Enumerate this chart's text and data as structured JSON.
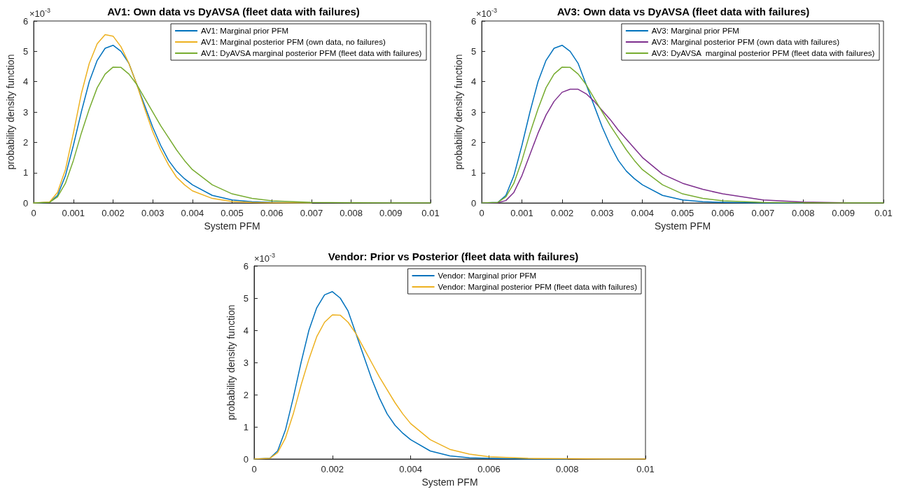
{
  "chart_data": [
    {
      "type": "line",
      "title": "AV1: Own data vs DyAVSA (fleet data with failures)",
      "xlabel": "System PFM",
      "ylabel": "probability density function",
      "annotations": [
        "×10$^{-3}$"
      ],
      "legend": "top right",
      "grid": false,
      "marker": "none",
      "line_style": "solid",
      "x": [
        0,
        0.0004,
        0.0006,
        0.0008,
        0.001,
        0.0012,
        0.0014,
        0.0016,
        0.0018,
        0.002,
        0.0022,
        0.0024,
        0.0026,
        0.0028,
        0.003,
        0.0032,
        0.0034,
        0.0036,
        0.0038,
        0.004,
        0.0045,
        0.005,
        0.0055,
        0.006,
        0.007,
        0.008,
        0.009,
        0.01
      ],
      "xlim": [
        0,
        0.01
      ],
      "xticks": [
        0,
        0.001,
        0.002,
        0.003,
        0.004,
        0.005,
        0.006,
        0.007,
        0.008,
        0.009,
        0.01
      ],
      "ylim": [
        0,
        6
      ],
      "yticks": [
        0,
        1,
        2,
        3,
        4,
        5,
        6
      ],
      "series": [
        {
          "name": "AV1: Marginal prior PFM",
          "color": "#0072bd",
          "values": [
            0,
            0.02,
            0.25,
            0.9,
            1.9,
            3.0,
            4.0,
            4.7,
            5.1,
            5.2,
            5.0,
            4.6,
            3.9,
            3.2,
            2.5,
            1.9,
            1.4,
            1.05,
            0.8,
            0.6,
            0.25,
            0.1,
            0.04,
            0.02,
            0,
            null,
            null,
            null
          ]
        },
        {
          "name": "AV1: Marginal posterior PFM (own data, no failures)",
          "color": "#edb120",
          "values": [
            0,
            0.03,
            0.35,
            1.1,
            2.3,
            3.6,
            4.6,
            5.25,
            5.55,
            5.5,
            5.15,
            4.6,
            3.9,
            3.1,
            2.35,
            1.75,
            1.25,
            0.85,
            0.6,
            0.4,
            0.15,
            0.05,
            0.02,
            0.01,
            0,
            null,
            null,
            null
          ]
        },
        {
          "name": "AV1: DyAVSA marginal posterior PFM (fleet data with failures)",
          "color": "#77ac30",
          "values": [
            0,
            0.02,
            0.2,
            0.65,
            1.4,
            2.3,
            3.1,
            3.8,
            4.25,
            4.48,
            4.47,
            4.25,
            3.9,
            3.45,
            3.0,
            2.55,
            2.15,
            1.75,
            1.4,
            1.1,
            0.6,
            0.3,
            0.15,
            0.07,
            0.02,
            0.01,
            0,
            0
          ]
        }
      ]
    },
    {
      "type": "line",
      "title": "AV3: Own data vs DyAVSA (fleet data with failures)",
      "xlabel": "System PFM",
      "ylabel": "probability density function",
      "annotations": [
        "×10$^{-3}$"
      ],
      "legend": "top right",
      "grid": false,
      "marker": "none",
      "line_style": "solid",
      "x": [
        0,
        0.0004,
        0.0006,
        0.0008,
        0.001,
        0.0012,
        0.0014,
        0.0016,
        0.0018,
        0.002,
        0.0022,
        0.0024,
        0.0026,
        0.0028,
        0.003,
        0.0032,
        0.0034,
        0.0036,
        0.0038,
        0.004,
        0.0045,
        0.005,
        0.0055,
        0.006,
        0.007,
        0.008,
        0.009,
        0.01
      ],
      "xlim": [
        0,
        0.01
      ],
      "xticks": [
        0,
        0.001,
        0.002,
        0.003,
        0.004,
        0.005,
        0.006,
        0.007,
        0.008,
        0.009,
        0.01
      ],
      "ylim": [
        0,
        6
      ],
      "yticks": [
        0,
        1,
        2,
        3,
        4,
        5,
        6
      ],
      "series": [
        {
          "name": "AV3: Marginal prior PFM",
          "color": "#0072bd",
          "values": [
            0,
            0.02,
            0.25,
            0.9,
            1.9,
            3.0,
            4.0,
            4.7,
            5.1,
            5.2,
            5.0,
            4.6,
            3.9,
            3.2,
            2.5,
            1.9,
            1.4,
            1.05,
            0.8,
            0.6,
            0.25,
            0.1,
            0.04,
            0.02,
            0,
            0,
            null,
            null
          ]
        },
        {
          "name": "AV3: Marginal posterior PFM (own data with failures)",
          "color": "#7e2f8e",
          "values": [
            0,
            0.01,
            0.08,
            0.35,
            0.9,
            1.6,
            2.3,
            2.9,
            3.35,
            3.65,
            3.75,
            3.75,
            3.6,
            3.35,
            3.05,
            2.75,
            2.4,
            2.1,
            1.8,
            1.5,
            0.95,
            0.65,
            0.45,
            0.3,
            0.1,
            0.03,
            0.01,
            null
          ]
        },
        {
          "name": "AV3: DyAVSA  marginal posterior PFM (fleet data with failures)",
          "color": "#77ac30",
          "values": [
            0,
            0.02,
            0.2,
            0.65,
            1.4,
            2.3,
            3.1,
            3.8,
            4.25,
            4.48,
            4.47,
            4.25,
            3.9,
            3.45,
            3.0,
            2.55,
            2.15,
            1.75,
            1.4,
            1.1,
            0.6,
            0.3,
            0.15,
            0.07,
            0.02,
            0.01,
            0,
            0
          ]
        }
      ]
    },
    {
      "type": "line",
      "title": "Vendor: Prior vs Posterior (fleet data with failures)",
      "xlabel": "System PFM",
      "ylabel": "probability density function",
      "annotations": [
        "×10$^{-3}$"
      ],
      "legend": "top right",
      "grid": false,
      "marker": "none",
      "line_style": "solid",
      "x": [
        0,
        0.0004,
        0.0006,
        0.0008,
        0.001,
        0.0012,
        0.0014,
        0.0016,
        0.0018,
        0.002,
        0.0022,
        0.0024,
        0.0026,
        0.0028,
        0.003,
        0.0032,
        0.0034,
        0.0036,
        0.0038,
        0.004,
        0.0045,
        0.005,
        0.0055,
        0.006,
        0.007,
        0.008,
        0.009,
        0.01
      ],
      "xlim": [
        0,
        0.01
      ],
      "xticks": [
        0,
        0.002,
        0.004,
        0.006,
        0.008,
        0.01
      ],
      "ylim": [
        0,
        6
      ],
      "yticks": [
        0,
        1,
        2,
        3,
        4,
        5,
        6
      ],
      "series": [
        {
          "name": "Vendor: Marginal prior PFM",
          "color": "#0072bd",
          "values": [
            0,
            0.02,
            0.25,
            0.9,
            1.9,
            3.0,
            4.0,
            4.7,
            5.1,
            5.2,
            5.0,
            4.6,
            3.9,
            3.2,
            2.5,
            1.9,
            1.4,
            1.05,
            0.8,
            0.6,
            0.25,
            0.1,
            0.04,
            0.02,
            0,
            0,
            null,
            null
          ]
        },
        {
          "name": "Vendor: Marginal posterior PFM (fleet data with failures)",
          "color": "#edb120",
          "values": [
            0,
            0.02,
            0.2,
            0.65,
            1.4,
            2.3,
            3.1,
            3.8,
            4.25,
            4.48,
            4.47,
            4.25,
            3.9,
            3.45,
            3.0,
            2.55,
            2.15,
            1.75,
            1.4,
            1.1,
            0.6,
            0.3,
            0.15,
            0.07,
            0.02,
            0.01,
            0,
            0
          ]
        }
      ]
    }
  ]
}
